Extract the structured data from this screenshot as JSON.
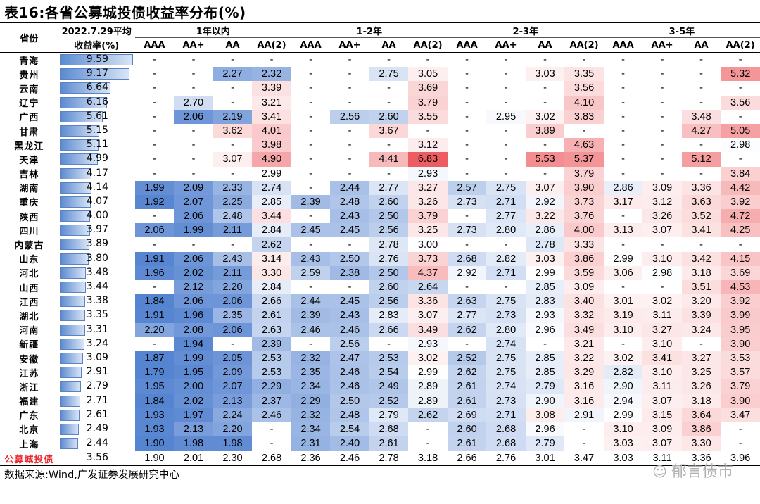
{
  "title": "表16:各省公募城投债收益率分布(%)",
  "header": {
    "province": "省份",
    "avg_line1": "2022.7.29平均",
    "avg_line2": "收益率(%)",
    "groups": [
      "1年以内",
      "1-2年",
      "2-3年",
      "3-5年"
    ],
    "ratings": [
      "AAA",
      "AA+",
      "AA",
      "AA(2)"
    ]
  },
  "rows": [
    {
      "province": "青海",
      "avg": "9.59",
      "avg_value": 9.59,
      "cells": [
        "-",
        "-",
        "-",
        "-",
        "-",
        "-",
        "-",
        "-",
        "-",
        "-",
        "-",
        "-",
        "-",
        "-",
        "-",
        "-"
      ]
    },
    {
      "province": "贵州",
      "avg": "9.17",
      "avg_value": 9.17,
      "cells": [
        "-",
        "-",
        "2.27",
        "2.32",
        "-",
        "-",
        "2.75",
        "3.05",
        "-",
        "-",
        "3.03",
        "3.35",
        "-",
        "-",
        "-",
        "5.32"
      ]
    },
    {
      "province": "云南",
      "avg": "6.64",
      "avg_value": 6.64,
      "cells": [
        "-",
        "-",
        "-",
        "3.39",
        "-",
        "-",
        "-",
        "3.69",
        "-",
        "-",
        "-",
        "3.56",
        "-",
        "-",
        "-",
        "-"
      ]
    },
    {
      "province": "辽宁",
      "avg": "6.16",
      "avg_value": 6.16,
      "cells": [
        "-",
        "2.70",
        "-",
        "3.21",
        "-",
        "-",
        "-",
        "3.79",
        "-",
        "-",
        "-",
        "4.10",
        "-",
        "-",
        "-",
        "3.56"
      ]
    },
    {
      "province": "广西",
      "avg": "5.61",
      "avg_value": 5.61,
      "cells": [
        "-",
        "2.06",
        "2.19",
        "3.41",
        "-",
        "2.56",
        "2.60",
        "3.55",
        "-",
        "2.95",
        "3.02",
        "3.83",
        "-",
        "-",
        "3.48",
        "-"
      ]
    },
    {
      "province": "甘肃",
      "avg": "5.15",
      "avg_value": 5.15,
      "cells": [
        "-",
        "-",
        "3.62",
        "4.01",
        "-",
        "-",
        "3.67",
        "-",
        "-",
        "-",
        "3.89",
        "-",
        "-",
        "-",
        "4.27",
        "5.05"
      ]
    },
    {
      "province": "黑龙江",
      "avg": "5.11",
      "avg_value": 5.11,
      "cells": [
        "-",
        "-",
        "-",
        "3.98",
        "-",
        "-",
        "-",
        "3.12",
        "-",
        "-",
        "-",
        "4.63",
        "-",
        "-",
        "-",
        "2.98"
      ]
    },
    {
      "province": "天津",
      "avg": "4.99",
      "avg_value": 4.99,
      "cells": [
        "-",
        "-",
        "3.07",
        "4.90",
        "-",
        "-",
        "4.41",
        "6.83",
        "-",
        "-",
        "5.53",
        "5.37",
        "-",
        "-",
        "5.12",
        "-"
      ]
    },
    {
      "province": "吉林",
      "avg": "4.17",
      "avg_value": 4.17,
      "cells": [
        "-",
        "-",
        "-",
        "2.99",
        "-",
        "-",
        "-",
        "2.93",
        "-",
        "-",
        "-",
        "3.79",
        "-",
        "-",
        "-",
        "3.84"
      ]
    },
    {
      "province": "湖南",
      "avg": "4.14",
      "avg_value": 4.14,
      "cells": [
        "1.99",
        "2.09",
        "2.33",
        "2.74",
        "-",
        "2.44",
        "2.77",
        "3.27",
        "2.57",
        "2.75",
        "3.07",
        "3.90",
        "2.86",
        "3.09",
        "3.36",
        "4.42"
      ]
    },
    {
      "province": "重庆",
      "avg": "4.07",
      "avg_value": 4.07,
      "cells": [
        "1.92",
        "2.07",
        "2.25",
        "2.85",
        "2.39",
        "2.48",
        "2.60",
        "3.26",
        "2.73",
        "2.71",
        "2.92",
        "3.73",
        "3.17",
        "3.12",
        "3.63",
        "3.92"
      ]
    },
    {
      "province": "陕西",
      "avg": "4.00",
      "avg_value": 4.0,
      "cells": [
        "-",
        "2.06",
        "2.48",
        "3.44",
        "-",
        "2.43",
        "2.50",
        "3.79",
        "-",
        "2.77",
        "3.22",
        "3.76",
        "-",
        "3.26",
        "3.52",
        "4.72"
      ]
    },
    {
      "province": "四川",
      "avg": "3.97",
      "avg_value": 3.97,
      "cells": [
        "2.06",
        "1.99",
        "2.11",
        "2.84",
        "2.45",
        "2.45",
        "2.56",
        "3.25",
        "2.73",
        "2.80",
        "2.86",
        "4.00",
        "3.13",
        "3.07",
        "3.41",
        "4.25"
      ]
    },
    {
      "province": "内蒙古",
      "avg": "3.89",
      "avg_value": 3.89,
      "cells": [
        "-",
        "-",
        "-",
        "2.62",
        "-",
        "-",
        "2.78",
        "3.00",
        "-",
        "-",
        "2.78",
        "3.33",
        "-",
        "-",
        "-",
        "-"
      ]
    },
    {
      "province": "山东",
      "avg": "3.80",
      "avg_value": 3.8,
      "cells": [
        "1.91",
        "2.06",
        "2.43",
        "3.14",
        "2.43",
        "2.50",
        "2.76",
        "3.73",
        "2.68",
        "2.82",
        "3.03",
        "3.86",
        "2.99",
        "3.10",
        "3.42",
        "4.15"
      ]
    },
    {
      "province": "河北",
      "avg": "3.48",
      "avg_value": 3.48,
      "cells": [
        "1.96",
        "2.02",
        "2.11",
        "3.30",
        "2.59",
        "2.38",
        "2.50",
        "4.37",
        "2.92",
        "2.71",
        "2.99",
        "3.59",
        "3.06",
        "2.98",
        "3.18",
        "3.69"
      ]
    },
    {
      "province": "山西",
      "avg": "3.44",
      "avg_value": 3.44,
      "cells": [
        "-",
        "2.12",
        "2.20",
        "2.84",
        "-",
        "-",
        "2.60",
        "2.64",
        "-",
        "-",
        "2.85",
        "3.09",
        "-",
        "-",
        "3.51",
        "4.53"
      ]
    },
    {
      "province": "江西",
      "avg": "3.38",
      "avg_value": 3.38,
      "cells": [
        "1.84",
        "2.06",
        "2.06",
        "2.66",
        "2.44",
        "2.45",
        "2.56",
        "3.36",
        "2.63",
        "2.75",
        "2.83",
        "3.40",
        "3.01",
        "3.02",
        "3.20",
        "3.92"
      ]
    },
    {
      "province": "湖北",
      "avg": "3.35",
      "avg_value": 3.35,
      "cells": [
        "1.91",
        "1.96",
        "2.35",
        "2.61",
        "2.39",
        "2.43",
        "2.83",
        "3.07",
        "2.77",
        "2.73",
        "2.93",
        "3.32",
        "3.19",
        "3.11",
        "3.39",
        "3.99"
      ]
    },
    {
      "province": "河南",
      "avg": "3.31",
      "avg_value": 3.31,
      "cells": [
        "2.20",
        "2.08",
        "2.06",
        "2.63",
        "2.46",
        "2.46",
        "2.66",
        "3.49",
        "2.62",
        "2.80",
        "2.96",
        "3.49",
        "3.10",
        "3.27",
        "3.24",
        "3.95"
      ]
    },
    {
      "province": "新疆",
      "avg": "3.24",
      "avg_value": 3.24,
      "cells": [
        "-",
        "1.94",
        "-",
        "2.39",
        "-",
        "2.56",
        "-",
        "2.93",
        "-",
        "2.74",
        "-",
        "3.21",
        "-",
        "3.10",
        "-",
        "3.90"
      ]
    },
    {
      "province": "安徽",
      "avg": "3.09",
      "avg_value": 3.09,
      "cells": [
        "1.87",
        "1.99",
        "2.05",
        "2.53",
        "2.32",
        "2.47",
        "2.53",
        "3.02",
        "2.52",
        "2.75",
        "2.85",
        "3.22",
        "3.02",
        "3.41",
        "3.27",
        "3.53"
      ]
    },
    {
      "province": "江苏",
      "avg": "2.91",
      "avg_value": 2.91,
      "cells": [
        "1.79",
        "1.95",
        "2.09",
        "2.53",
        "2.35",
        "2.46",
        "2.54",
        "2.99",
        "2.62",
        "2.75",
        "2.85",
        "3.29",
        "2.82",
        "3.10",
        "3.25",
        "3.57"
      ]
    },
    {
      "province": "浙江",
      "avg": "2.79",
      "avg_value": 2.79,
      "cells": [
        "1.95",
        "2.00",
        "2.07",
        "2.29",
        "2.34",
        "2.46",
        "2.49",
        "2.89",
        "2.61",
        "2.74",
        "2.79",
        "3.16",
        "2.90",
        "3.11",
        "3.26",
        "3.79"
      ]
    },
    {
      "province": "福建",
      "avg": "2.71",
      "avg_value": 2.71,
      "cells": [
        "1.84",
        "2.02",
        "2.13",
        "2.37",
        "2.29",
        "2.50",
        "2.52",
        "2.89",
        "2.61",
        "2.73",
        "2.90",
        "3.16",
        "2.94",
        "3.07",
        "3.18",
        "3.90"
      ]
    },
    {
      "province": "广东",
      "avg": "2.61",
      "avg_value": 2.61,
      "cells": [
        "1.93",
        "1.97",
        "2.24",
        "2.46",
        "2.32",
        "2.48",
        "2.79",
        "2.62",
        "2.69",
        "2.71",
        "3.08",
        "2.91",
        "2.99",
        "3.15",
        "3.64",
        "3.47"
      ]
    },
    {
      "province": "北京",
      "avg": "2.49",
      "avg_value": 2.49,
      "cells": [
        "1.93",
        "2.13",
        "2.20",
        "-",
        "2.34",
        "2.54",
        "2.68",
        "-",
        "2.60",
        "2.68",
        "2.96",
        "-",
        "3.10",
        "3.09",
        "3.86",
        "-"
      ]
    },
    {
      "province": "上海",
      "avg": "2.44",
      "avg_value": 2.44,
      "cells": [
        "1.90",
        "1.98",
        "1.98",
        "-",
        "2.31",
        "2.40",
        "2.61",
        "-",
        "2.61",
        "2.68",
        "2.79",
        "-",
        "3.03",
        "3.07",
        "3.30",
        "-"
      ]
    }
  ],
  "total": {
    "province": "公募城投债",
    "avg": "3.56",
    "avg_value": 3.56,
    "cells": [
      "1.90",
      "2.01",
      "2.30",
      "2.68",
      "2.36",
      "2.46",
      "2.78",
      "3.18",
      "2.66",
      "2.76",
      "3.01",
      "3.47",
      "3.03",
      "3.11",
      "3.36",
      "3.96"
    ]
  },
  "source": "数据来源:Wind,广发证券发展研究中心",
  "watermark": "郁言债市",
  "colors": {
    "cold": "#5b8ad0",
    "neutral": "#ffffff",
    "hot": "#ef6a6c",
    "total_label": "#e8262b"
  },
  "icons": {
    "watermark": "wechat-icon"
  }
}
